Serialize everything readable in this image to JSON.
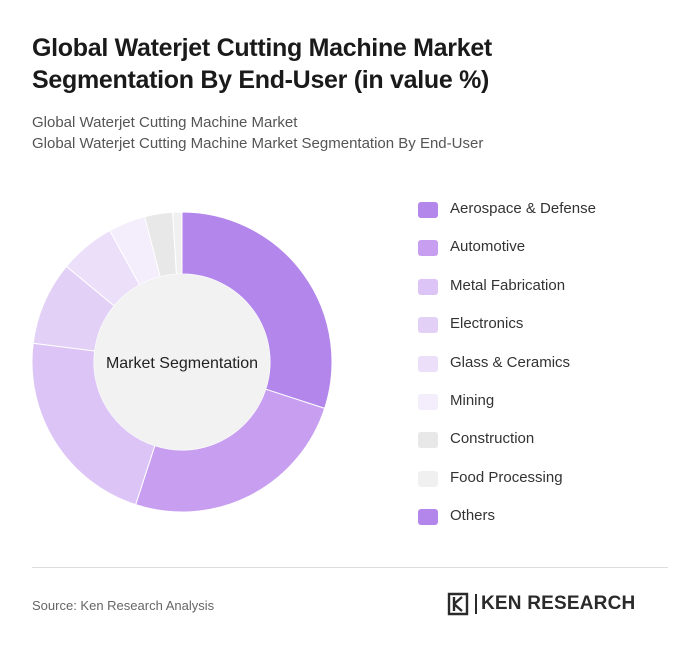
{
  "header": {
    "title_line1": "Global Waterjet Cutting Machine Market",
    "title_line2": "Segmentation By End-User (in value %)",
    "subtitle_line1": "Global Waterjet Cutting Machine Market",
    "subtitle_line2": "Global Waterjet Cutting Machine Market Segmentation By End-User"
  },
  "chart_data": {
    "type": "pie",
    "variant": "donut",
    "center_label": "Market Segmentation",
    "legend_position": "right",
    "categories": [
      "Aerospace & Defense",
      "Automotive",
      "Metal Fabrication",
      "Electronics",
      "Glass & Ceramics",
      "Mining",
      "Construction",
      "Food Processing",
      "Others"
    ],
    "values": [
      30,
      25,
      22,
      9,
      6,
      4,
      3,
      1,
      0
    ],
    "colors": [
      "#b386ec",
      "#c79ef0",
      "#dcc4f6",
      "#e3d0f7",
      "#ecdffa",
      "#f3edfc",
      "#e8e8e8",
      "#f0f0f0",
      "#b386ec"
    ]
  },
  "footer": {
    "source": "Source: Ken Research Analysis",
    "logo_text": "KEN RESEARCH"
  }
}
